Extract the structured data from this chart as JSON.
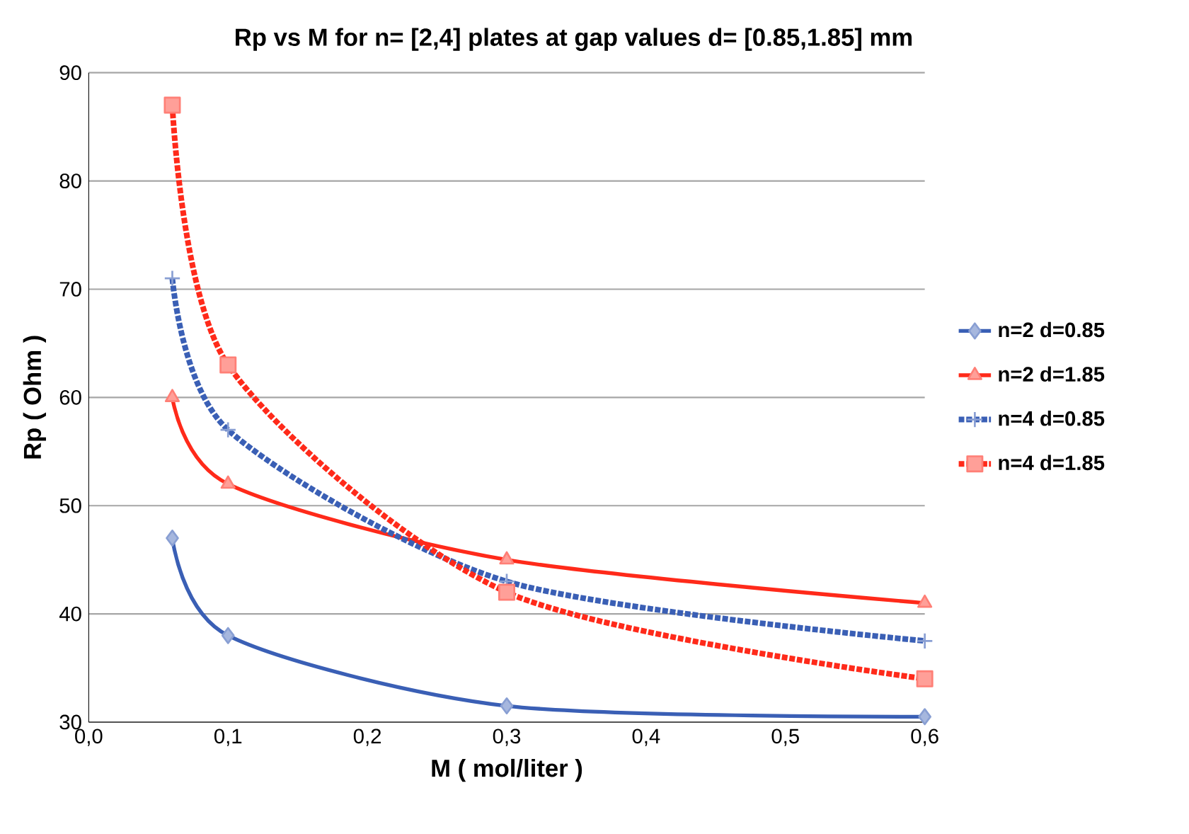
{
  "chart_data": {
    "type": "line",
    "title": "Rp vs M for n= [2,4] plates at gap values d= [0.85,1.85] mm",
    "xlabel": "M  ( mol/liter )",
    "ylabel": "Rp  ( Ohm )",
    "x": [
      0.06,
      0.1,
      0.3,
      0.6
    ],
    "series": [
      {
        "name": "n=2 d=0.85",
        "color": "#3a5fb5",
        "values": [
          47,
          38,
          31.5,
          30.5
        ],
        "marker": "diamond",
        "line_style": "solid"
      },
      {
        "name": "n=2 d=1.85",
        "color": "#ff2a1a",
        "values": [
          60,
          52,
          45,
          41
        ],
        "marker": "triangle",
        "line_style": "solid"
      },
      {
        "name": "n=4 d=0.85",
        "color": "#3a5fb5",
        "values": [
          71,
          57,
          43,
          37.5
        ],
        "marker": "cross",
        "line_style": "dotted"
      },
      {
        "name": "n=4 d=1.85",
        "color": "#ff2a1a",
        "values": [
          87,
          63,
          42,
          34
        ],
        "marker": "square",
        "line_style": "dotted"
      }
    ],
    "xlim": [
      0,
      0.6
    ],
    "xticks": [
      {
        "value": 0,
        "label": "0,0"
      },
      {
        "value": 0.1,
        "label": "0,1"
      },
      {
        "value": 0.2,
        "label": "0,2"
      },
      {
        "value": 0.3,
        "label": "0,3"
      },
      {
        "value": 0.4,
        "label": "0,4"
      },
      {
        "value": 0.5,
        "label": "0,5"
      },
      {
        "value": 0.6,
        "label": "0,6"
      }
    ],
    "ylim": [
      30,
      90
    ],
    "yticks": [
      30,
      40,
      50,
      60,
      70,
      80,
      90
    ],
    "grid": "y",
    "legend": "right"
  }
}
